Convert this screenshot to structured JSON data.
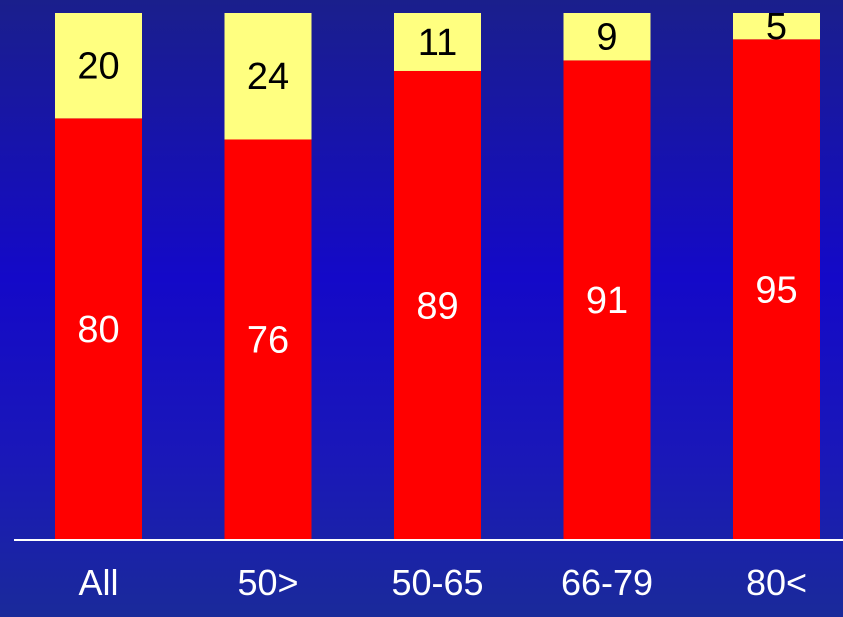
{
  "chart_data": {
    "type": "bar",
    "stacked": true,
    "categories": [
      "All",
      "50>",
      "50-65",
      "66-79",
      "80<"
    ],
    "series": [
      {
        "values": [
          80,
          76,
          89,
          91,
          95
        ]
      },
      {
        "values": [
          20,
          24,
          11,
          9,
          5
        ]
      }
    ],
    "ylim": [
      0,
      100
    ],
    "grid": false,
    "legend": "none",
    "colors": {
      "bottom_series": "#ff0000",
      "top_series": "#ffff80",
      "bottom_label": "#ffffff",
      "top_label": "#000000",
      "axis_line": "#ffffff"
    }
  }
}
